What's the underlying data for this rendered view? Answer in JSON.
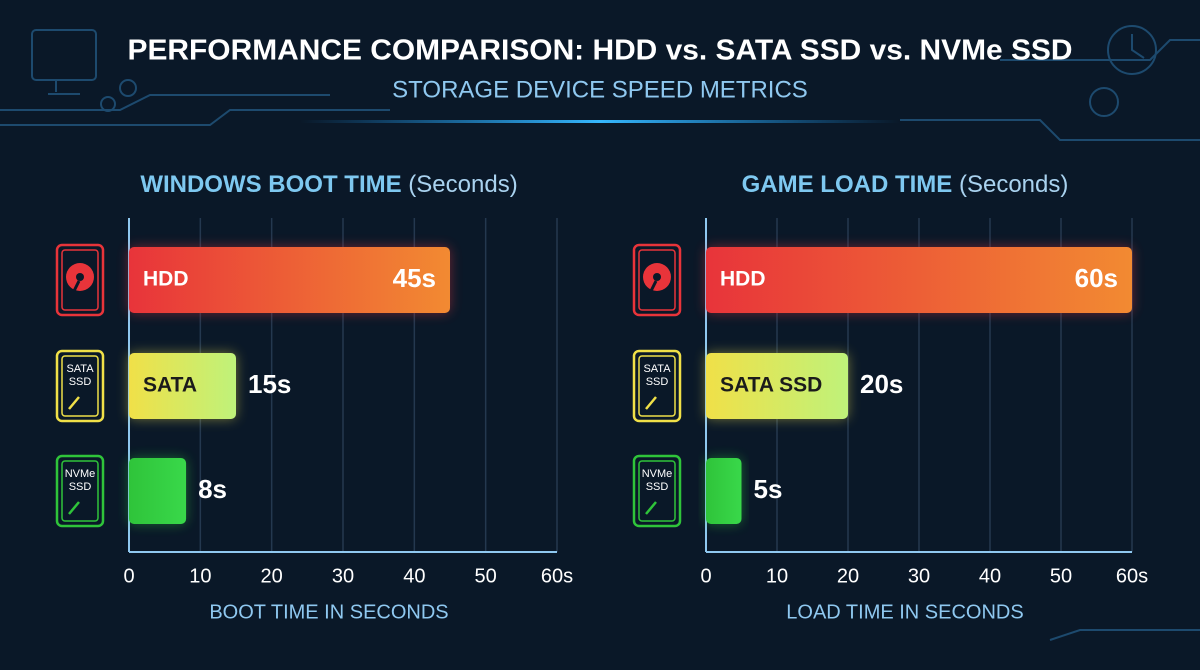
{
  "header": {
    "title": "PERFORMANCE COMPARISON: HDD vs. SATA SSD vs. NVMe SSD",
    "subtitle": "STORAGE DEVICE SPEED METRICS"
  },
  "chart_data": [
    {
      "type": "barh",
      "title": "WINDOWS BOOT TIME",
      "title_unit": "(Seconds)",
      "categories": [
        "HDD",
        "SATA",
        null
      ],
      "icon_labels": [
        null,
        "SATA SSD",
        "NVMe SSD"
      ],
      "values": [
        45,
        15,
        8
      ],
      "value_labels": [
        "45s",
        "15s",
        "8s"
      ],
      "colors": [
        "#e8343a",
        "#f0e048",
        "#2fc43a"
      ],
      "xlim": [
        0,
        60
      ],
      "xticks": [
        0,
        10,
        20,
        30,
        40,
        50,
        {
          "value": 60,
          "label": "60s"
        }
      ],
      "xlabel": "BOOT TIME IN SECONDS",
      "grid": true
    },
    {
      "type": "barh",
      "title": "GAME LOAD TIME",
      "title_unit": "(Seconds)",
      "categories": [
        "HDD",
        "SATA SSD",
        null
      ],
      "icon_labels": [
        null,
        "SATA SSD",
        "NVMe SSD"
      ],
      "values": [
        60,
        20,
        5
      ],
      "value_labels": [
        "60s",
        "20s",
        "5s"
      ],
      "colors": [
        "#e8343a",
        "#f0e048",
        "#2fc43a"
      ],
      "xlim": [
        0,
        60
      ],
      "xticks": [
        0,
        10,
        20,
        30,
        40,
        50,
        {
          "value": 60,
          "label": "60s"
        }
      ],
      "xlabel": "LOAD TIME IN SECONDS",
      "grid": true
    }
  ]
}
